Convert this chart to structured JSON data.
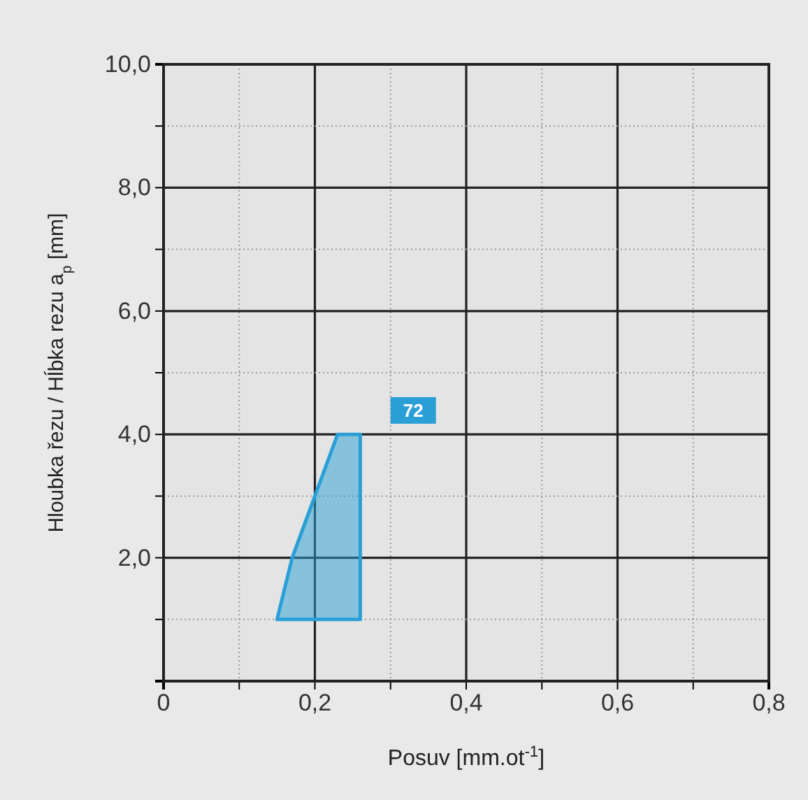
{
  "chart_data": {
    "type": "area",
    "xlabel": "Posuv [mm.ot$^{-1}$]",
    "ylabel": "Hloubka řezu / Hĺbka rezu a$_{p}$ [mm]",
    "series": [
      {
        "color": "#2a9fd6",
        "x": [
          0.15,
          0.17,
          0.23,
          0.26,
          0.26
        ],
        "values": [
          1.0,
          2.0,
          4.0,
          4.0,
          1.0
        ]
      }
    ],
    "annotations": [
      {
        "text": "72",
        "x": 0.33,
        "y": 4.4
      }
    ],
    "xlim": [
      0,
      0.8
    ],
    "ylim": [
      0,
      10
    ],
    "xticks": [
      0,
      {
        "value": 0.1,
        "label": null
      },
      {
        "value": 0.2,
        "label": "0,2"
      },
      {
        "value": 0.3,
        "label": null
      },
      {
        "value": 0.4,
        "label": "0,4"
      },
      {
        "value": 0.5,
        "label": null
      },
      {
        "value": 0.6,
        "label": "0,6"
      },
      {
        "value": 0.7,
        "label": null
      },
      {
        "value": 0.8,
        "label": "0,8"
      }
    ],
    "yticks": [
      {
        "value": 1,
        "label": null
      },
      {
        "value": 2,
        "label": "2,0"
      },
      {
        "value": 3,
        "label": null
      },
      {
        "value": 4,
        "label": "4,0"
      },
      {
        "value": 5,
        "label": null
      },
      {
        "value": 6,
        "label": "6,0"
      },
      {
        "value": 7,
        "label": null
      },
      {
        "value": 8,
        "label": "8,0"
      },
      {
        "value": 9,
        "label": null
      },
      {
        "value": 10,
        "label": "10,0"
      }
    ],
    "grid": true
  }
}
